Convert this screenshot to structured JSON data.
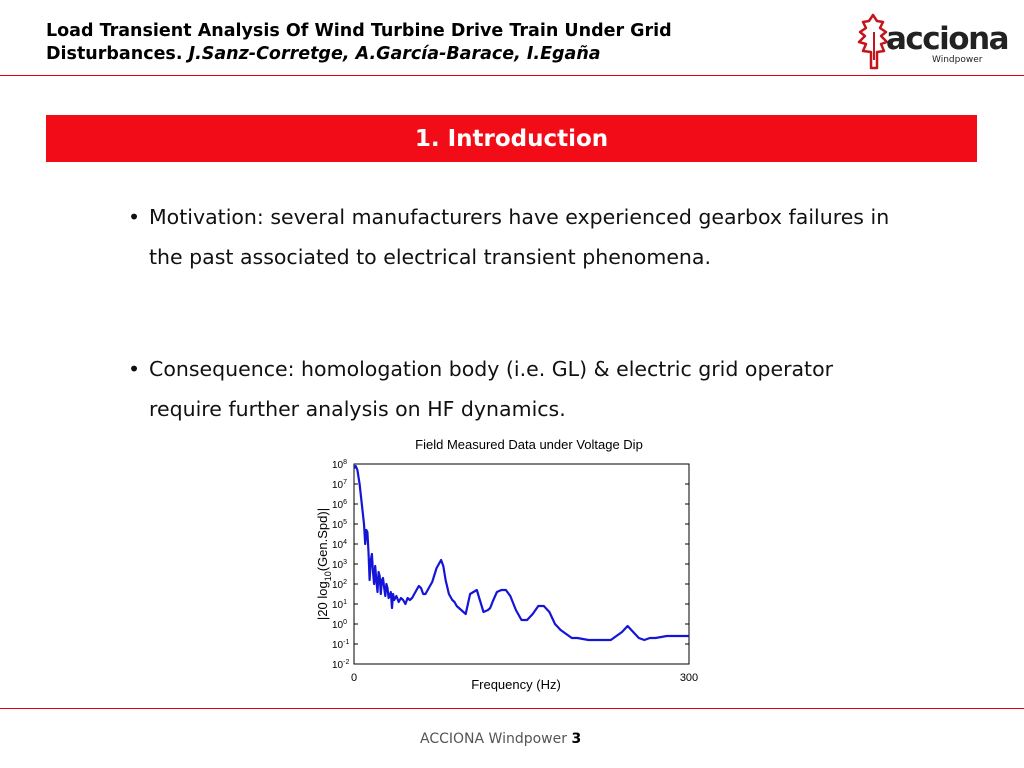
{
  "header": {
    "title_line1": "Load Transient Analysis Of Wind Turbine Drive Train Under Grid",
    "title_line2_start": "Disturbances. ",
    "authors": "J.Sanz-Corretge, A.García-Barace, I.Egaña"
  },
  "logo": {
    "word": "acciona",
    "sub": "Windpower"
  },
  "section": {
    "title": "1. Introduction"
  },
  "bullets": [
    "Motivation: several manufacturers have experienced gearbox failures in the past associated to electrical transient phenomena.",
    "Consequence: homologation body (i.e. GL) & electric grid operator require further analysis on HF dynamics."
  ],
  "bullet_symbol": "•",
  "footer": {
    "text": "ACCIONA Windpower ",
    "page": "3"
  },
  "colors": {
    "accent": "#f20c17",
    "series": "#1515d8"
  },
  "chart_data": {
    "type": "line",
    "title": "Field Measured Data under Voltage Dip",
    "xlabel": "Frequency (Hz)",
    "ylabel_main": "|20 log",
    "ylabel_sub": "10",
    "ylabel_end": "(Gen.Spd)|",
    "xlim": [
      0,
      300
    ],
    "ylim_exp": [
      -2,
      8
    ],
    "yscale": "log",
    "x_ticks": [
      {
        "value": 0,
        "label": "0"
      },
      {
        "value": 300,
        "label": "300"
      }
    ],
    "y_ticks": [
      {
        "exp": 8,
        "base": "10",
        "sup": "8"
      },
      {
        "exp": 7,
        "base": "10",
        "sup": "7"
      },
      {
        "exp": 6,
        "base": "10",
        "sup": "6"
      },
      {
        "exp": 5,
        "base": "10",
        "sup": "5"
      },
      {
        "exp": 4,
        "base": "10",
        "sup": "4"
      },
      {
        "exp": 3,
        "base": "10",
        "sup": "3"
      },
      {
        "exp": 2,
        "base": "10",
        "sup": "2"
      },
      {
        "exp": 1,
        "base": "10",
        "sup": "1"
      },
      {
        "exp": 0,
        "base": "10",
        "sup": "0"
      },
      {
        "exp": -1,
        "base": "10",
        "sup": "-1"
      },
      {
        "exp": -2,
        "base": "10",
        "sup": "-2"
      }
    ],
    "series": [
      {
        "x": [
          0,
          1.5,
          3,
          5,
          7,
          9,
          10,
          11,
          12,
          13,
          14,
          15,
          16,
          17,
          18,
          19,
          20,
          21,
          22,
          23,
          24,
          25,
          26,
          27,
          28,
          29,
          30,
          31,
          32,
          33,
          34,
          35,
          36,
          38,
          40,
          42,
          44,
          46,
          48,
          50,
          52,
          55,
          58,
          60,
          62,
          64,
          66,
          70,
          74,
          78,
          80,
          82,
          85,
          88,
          90,
          92,
          96,
          100,
          104,
          110,
          116,
          120,
          122,
          124,
          128,
          132,
          136,
          140,
          145,
          150,
          155,
          160,
          165,
          170,
          175,
          180,
          185,
          190,
          195,
          200,
          210,
          220,
          230,
          240,
          245,
          250,
          255,
          260,
          265,
          270,
          280,
          290,
          300
        ],
        "y_exp": [
          7.8,
          7.9,
          7.7,
          7.0,
          6.0,
          5.0,
          4.0,
          4.7,
          4.6,
          3.6,
          2.2,
          3.2,
          3.5,
          2.6,
          2.0,
          2.9,
          2.2,
          1.6,
          2.6,
          2.4,
          1.5,
          2.2,
          2.3,
          1.8,
          1.4,
          2.0,
          1.8,
          1.3,
          1.4,
          1.6,
          0.8,
          1.5,
          1.2,
          1.4,
          1.1,
          1.3,
          1.2,
          1.0,
          1.3,
          1.2,
          1.3,
          1.6,
          1.9,
          1.8,
          1.5,
          1.5,
          1.7,
          2.1,
          2.8,
          3.2,
          2.9,
          2.2,
          1.5,
          1.2,
          1.1,
          0.9,
          0.7,
          0.5,
          1.5,
          1.7,
          0.6,
          0.7,
          0.8,
          1.1,
          1.6,
          1.7,
          1.7,
          1.4,
          0.7,
          0.2,
          0.2,
          0.5,
          0.9,
          0.9,
          0.6,
          0.0,
          -0.3,
          -0.5,
          -0.7,
          -0.7,
          -0.8,
          -0.8,
          -0.8,
          -0.4,
          -0.1,
          -0.4,
          -0.7,
          -0.8,
          -0.7,
          -0.7,
          -0.6,
          -0.6,
          -0.6
        ]
      }
    ]
  }
}
